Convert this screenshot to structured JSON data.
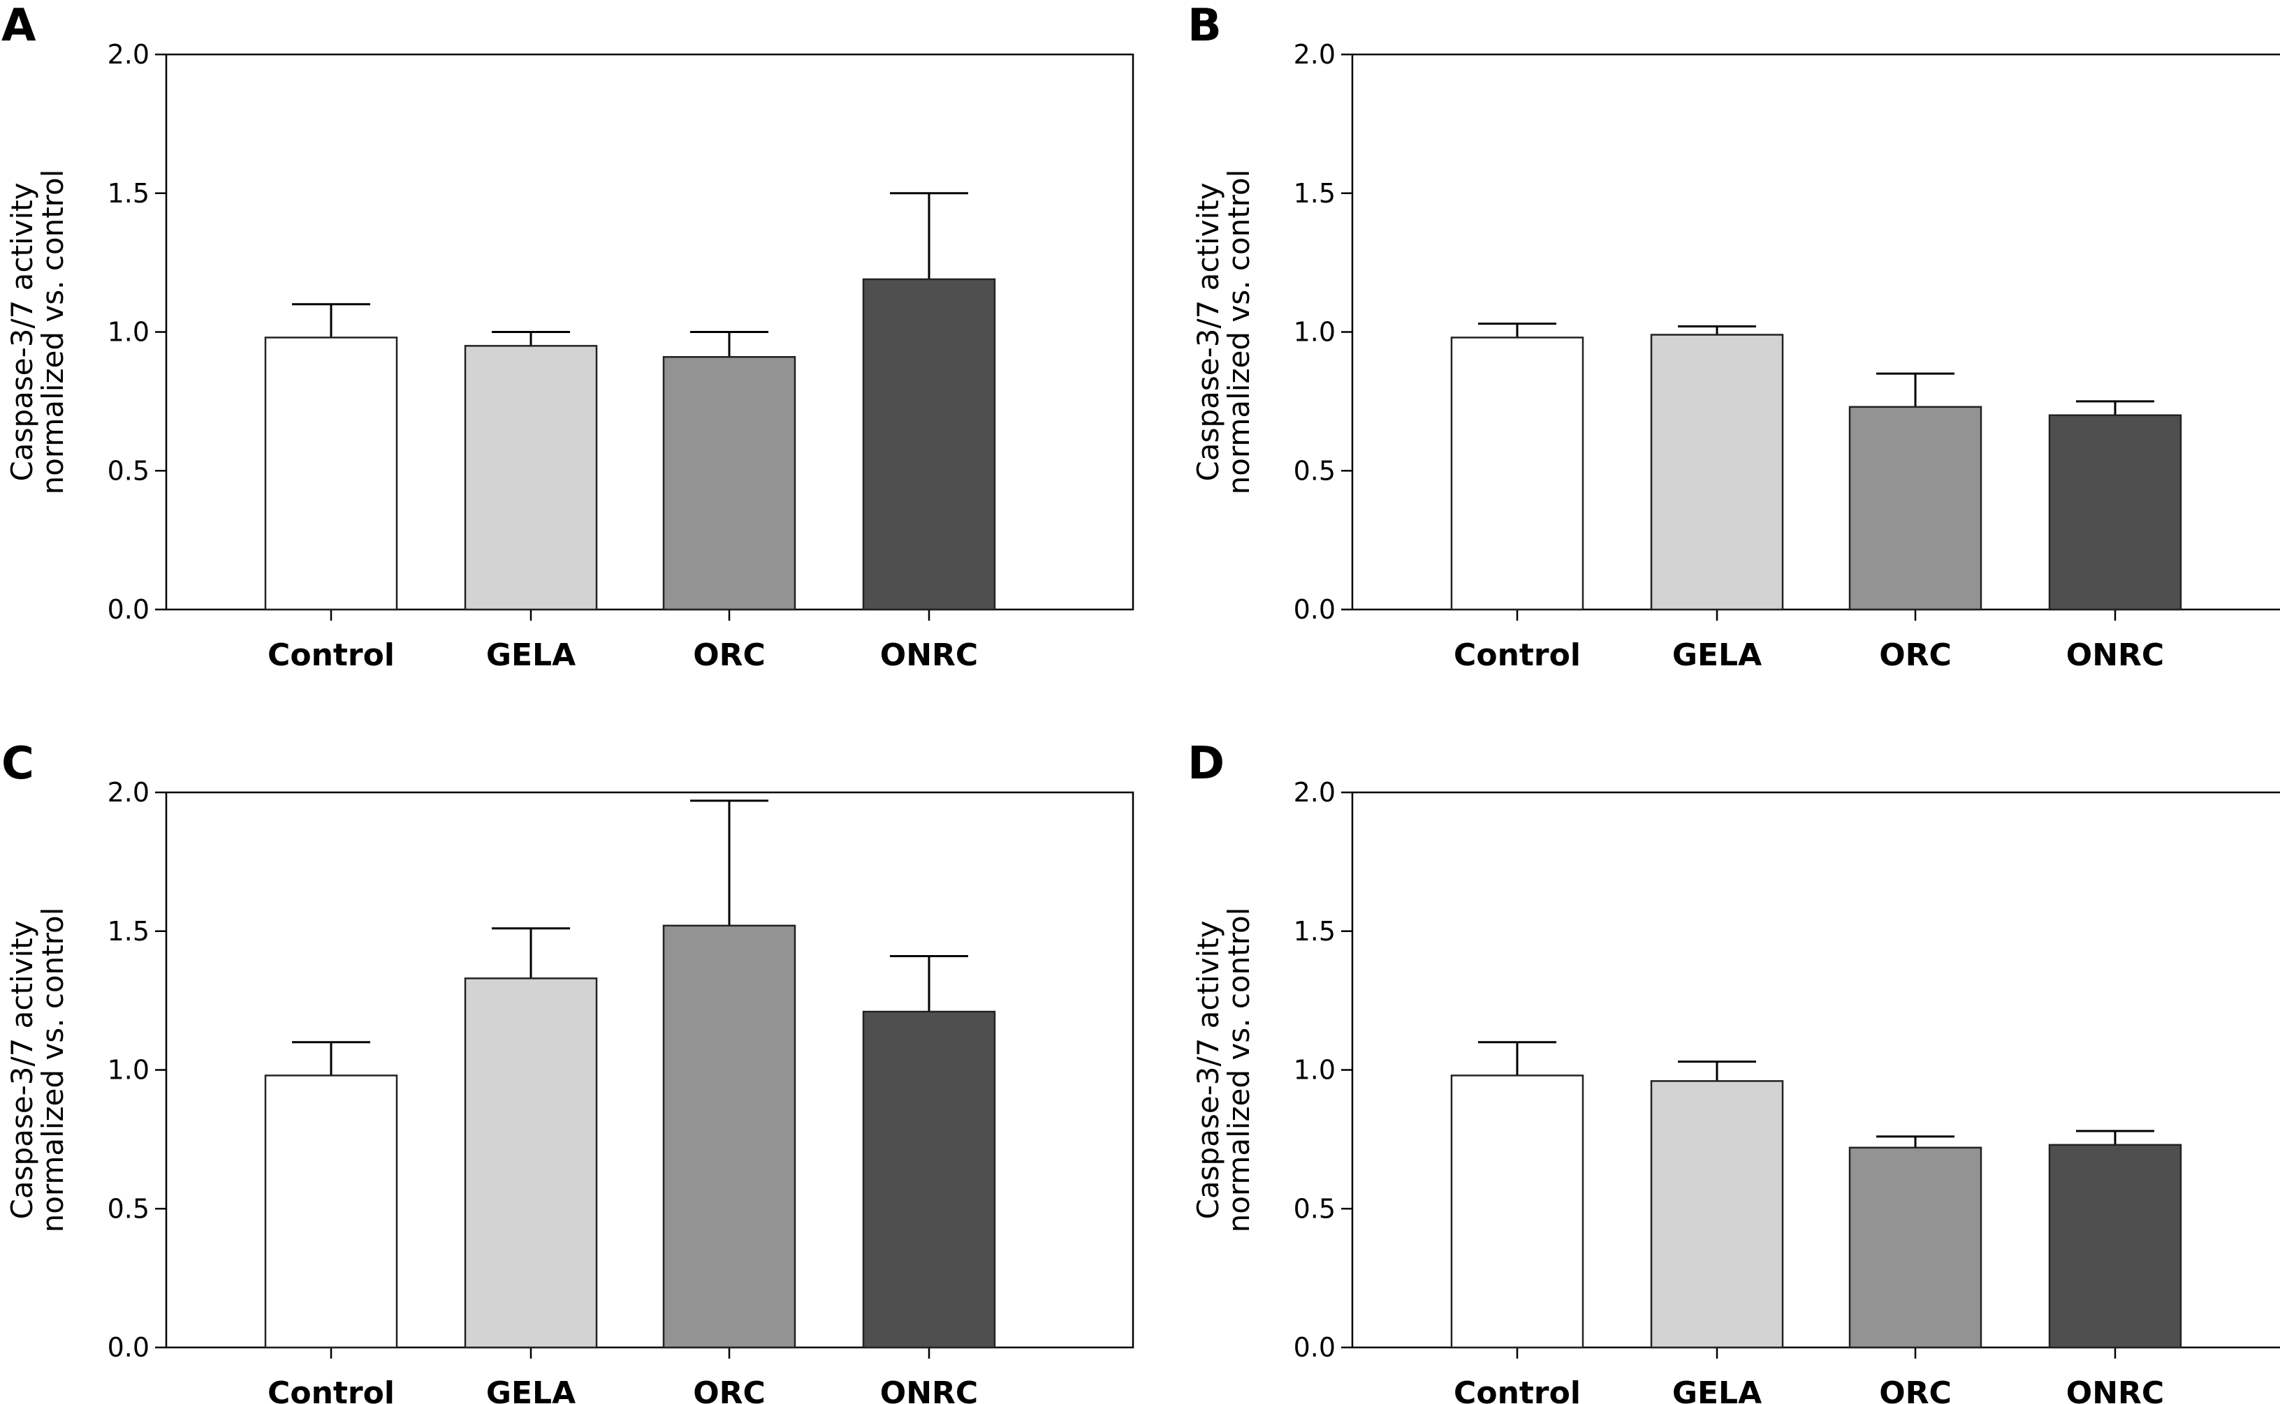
{
  "colors": {
    "bar_fills": [
      "#ffffff",
      "#d3d3d3",
      "#939393",
      "#4f4f4f"
    ],
    "bar_stroke": "#222222",
    "axis": "#000000"
  },
  "chart_data": [
    {
      "type": "bar",
      "panel": "A",
      "categories": [
        "Control",
        "GELA",
        "ORC",
        "ONRC"
      ],
      "values": [
        0.98,
        0.95,
        0.91,
        1.19
      ],
      "error_upper": [
        1.1,
        1.0,
        1.0,
        1.5
      ],
      "ylabel": [
        "Caspase-3/7 activity",
        "normalized vs. control"
      ],
      "ylim": [
        0,
        2.0
      ],
      "yticks": [
        "0.0",
        "0.5",
        "1.0",
        "1.5",
        "2.0"
      ],
      "grid": false
    },
    {
      "type": "bar",
      "panel": "B",
      "categories": [
        "Control",
        "GELA",
        "ORC",
        "ONRC"
      ],
      "values": [
        0.98,
        0.99,
        0.73,
        0.7
      ],
      "error_upper": [
        1.03,
        1.02,
        0.85,
        0.75
      ],
      "ylabel": [
        "Caspase-3/7 activity",
        "normalized vs. control"
      ],
      "ylim": [
        0,
        2.0
      ],
      "yticks": [
        "0.0",
        "0.5",
        "1.0",
        "1.5",
        "2.0"
      ],
      "grid": false
    },
    {
      "type": "bar",
      "panel": "C",
      "categories": [
        "Control",
        "GELA",
        "ORC",
        "ONRC"
      ],
      "values": [
        0.98,
        1.33,
        1.52,
        1.21
      ],
      "error_upper": [
        1.1,
        1.51,
        1.97,
        1.41
      ],
      "ylabel": [
        "Caspase-3/7 activity",
        "normalized vs. control"
      ],
      "ylim": [
        0,
        2.0
      ],
      "yticks": [
        "0.0",
        "0.5",
        "1.0",
        "1.5",
        "2.0"
      ],
      "grid": false
    },
    {
      "type": "bar",
      "panel": "D",
      "categories": [
        "Control",
        "GELA",
        "ORC",
        "ONRC"
      ],
      "values": [
        0.98,
        0.96,
        0.72,
        0.73
      ],
      "error_upper": [
        1.1,
        1.03,
        0.76,
        0.78
      ],
      "ylabel": [
        "Caspase-3/7 activity",
        "normalized vs. control"
      ],
      "ylim": [
        0,
        2.0
      ],
      "yticks": [
        "0.0",
        "0.5",
        "1.0",
        "1.5",
        "2.0"
      ],
      "grid": false
    }
  ]
}
